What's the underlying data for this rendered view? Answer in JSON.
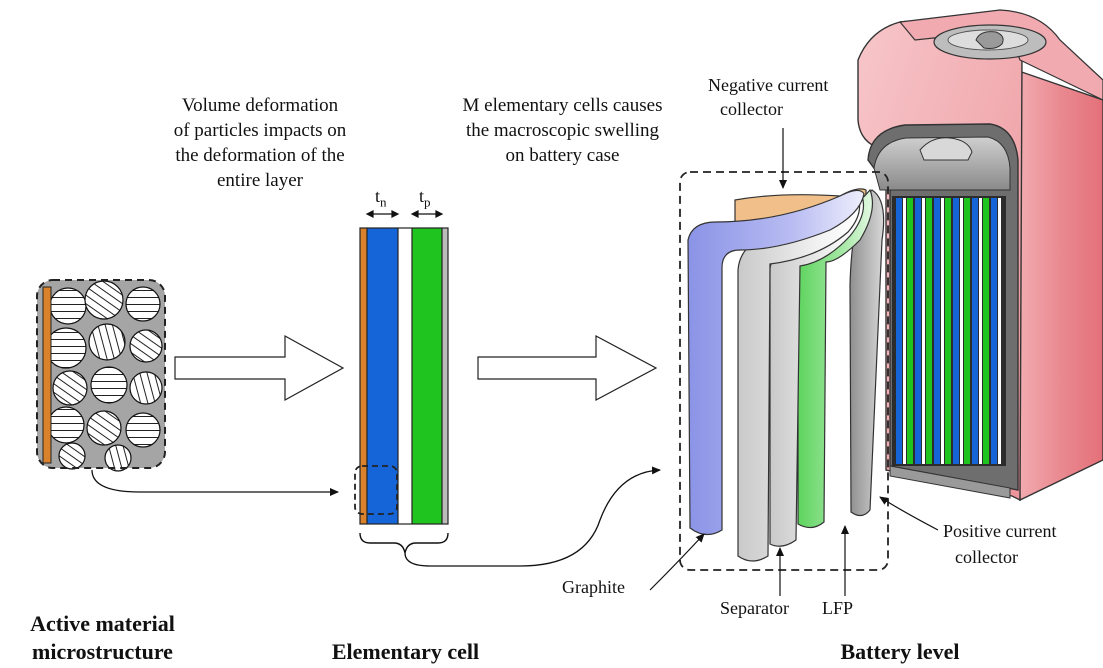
{
  "captions": {
    "volume_line1": "Volume deformation",
    "volume_line2": "of particles impacts on",
    "volume_line3": "the deformation of the",
    "volume_line4": "entire layer",
    "m_cells_line1": "M elementary cells causes",
    "m_cells_line2": "the macroscopic swelling",
    "m_cells_line3": "on battery case"
  },
  "thickness_symbols": {
    "tn_base": "t",
    "tn_sub": "n",
    "tp_base": "t",
    "tp_sub": "p"
  },
  "labels": {
    "negative_cc_line1": "Negative current",
    "negative_cc_line2": "collector",
    "positive_cc_line1": "Positive current",
    "positive_cc_line2": "collector",
    "graphite": "Graphite",
    "separator": "Separator",
    "lfp": "LFP"
  },
  "section_titles": {
    "microstructure_line1": "Active material",
    "microstructure_line2": "microstructure",
    "elementary_cell": "Elementary cell",
    "battery_level": "Battery level"
  },
  "colors": {
    "current_collector_negative": "#d9822b",
    "graphite_layer": "#1565d8",
    "lfp_layer": "#1fc41f",
    "battery_case": "#e8828a"
  }
}
